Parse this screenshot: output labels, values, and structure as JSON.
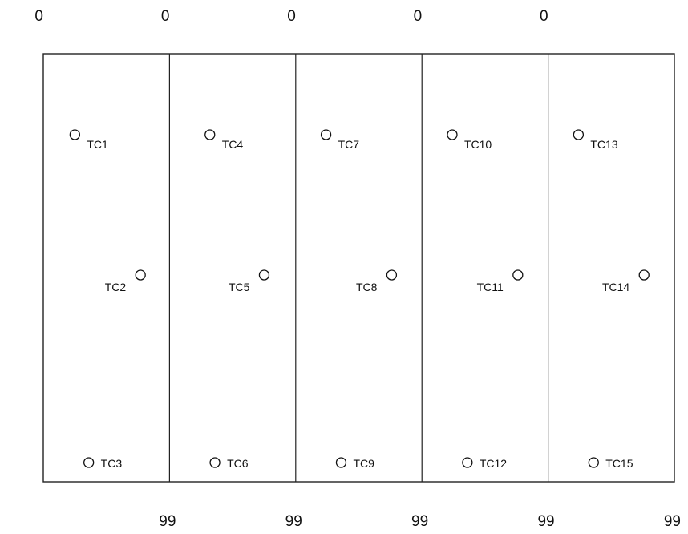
{
  "chart_data": {
    "type": "scatter",
    "title": "",
    "xlabel": "",
    "ylabel": "",
    "grid": false,
    "top_labels": [
      "0",
      "0",
      "0",
      "0",
      "0"
    ],
    "bottom_labels": [
      "99",
      "99",
      "99",
      "99",
      "99"
    ],
    "panels": [
      {
        "points": [
          {
            "label": "TC1",
            "level": 0,
            "offset": 0.25,
            "label_side": "right"
          },
          {
            "label": "TC2",
            "level": 1,
            "offset": 0.77,
            "label_side": "left"
          },
          {
            "label": "TC3",
            "level": 2,
            "offset": 0.36,
            "label_side": "right"
          }
        ]
      },
      {
        "points": [
          {
            "label": "TC4",
            "level": 0,
            "offset": 0.32,
            "label_side": "right"
          },
          {
            "label": "TC5",
            "level": 1,
            "offset": 0.75,
            "label_side": "left"
          },
          {
            "label": "TC6",
            "level": 2,
            "offset": 0.36,
            "label_side": "right"
          }
        ]
      },
      {
        "points": [
          {
            "label": "TC7",
            "level": 0,
            "offset": 0.24,
            "label_side": "right"
          },
          {
            "label": "TC8",
            "level": 1,
            "offset": 0.76,
            "label_side": "left"
          },
          {
            "label": "TC9",
            "level": 2,
            "offset": 0.36,
            "label_side": "right"
          }
        ]
      },
      {
        "points": [
          {
            "label": "TC10",
            "level": 0,
            "offset": 0.24,
            "label_side": "right"
          },
          {
            "label": "TC11",
            "level": 1,
            "offset": 0.76,
            "label_side": "left"
          },
          {
            "label": "TC12",
            "level": 2,
            "offset": 0.36,
            "label_side": "right"
          }
        ]
      },
      {
        "points": [
          {
            "label": "TC13",
            "level": 0,
            "offset": 0.24,
            "label_side": "right"
          },
          {
            "label": "TC14",
            "level": 1,
            "offset": 0.76,
            "label_side": "left"
          },
          {
            "label": "TC15",
            "level": 2,
            "offset": 0.36,
            "label_side": "right"
          }
        ]
      }
    ]
  },
  "colors": {
    "line": "#222222",
    "marker": "#111111",
    "text": "#111111",
    "background": "#ffffff"
  }
}
